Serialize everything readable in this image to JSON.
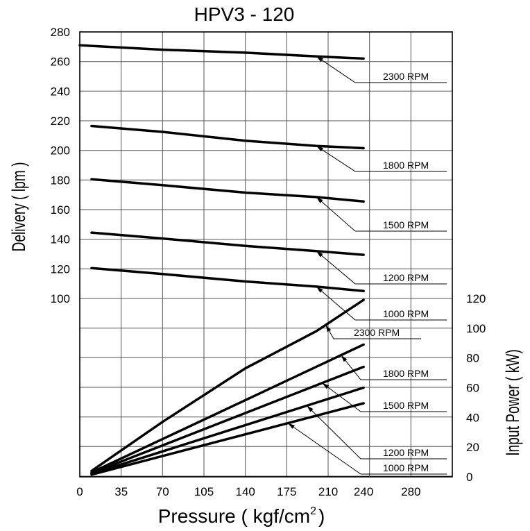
{
  "chart_data": {
    "type": "line",
    "title": "HPV3 - 120",
    "xlabel": "Pressure ( kgf/cm",
    "xlabel_sup": "2",
    "xlabel_close": ")",
    "ylabel_left": "Delivery ( lpm )",
    "ylabel_right": "Input Power ( kW)",
    "x_ticks": [
      "0",
      "35",
      "70",
      "105",
      "140",
      "175",
      "210",
      "240",
      "280"
    ],
    "x_tick_values": [
      0,
      35,
      70,
      105,
      140,
      175,
      210,
      240,
      280
    ],
    "xlim": [
      0,
      315
    ],
    "delivery_ticks": [
      "100",
      "120",
      "140",
      "160",
      "180",
      "200",
      "220",
      "240",
      "260",
      "280"
    ],
    "delivery_tick_values": [
      100,
      120,
      140,
      160,
      180,
      200,
      220,
      240,
      260,
      280
    ],
    "delivery_ylim": [
      100,
      280
    ],
    "power_ticks": [
      "0",
      "20",
      "40",
      "60",
      "80",
      "100",
      "120"
    ],
    "power_tick_values": [
      0,
      20,
      40,
      60,
      80,
      100,
      120
    ],
    "power_ylim": [
      0,
      120
    ],
    "delivery_series": [
      {
        "name": "2300 RPM",
        "x": [
          0,
          70,
          140,
          200,
          240
        ],
        "y": [
          271,
          268,
          266,
          263.5,
          262
        ]
      },
      {
        "name": "1800 RPM",
        "x": [
          10,
          70,
          140,
          200,
          240
        ],
        "y": [
          216.5,
          212.5,
          206.5,
          203,
          201.5
        ]
      },
      {
        "name": "1500 RPM",
        "x": [
          10,
          70,
          140,
          200,
          240
        ],
        "y": [
          180.5,
          176.5,
          171.5,
          168.5,
          165.5
        ]
      },
      {
        "name": "1200 RPM",
        "x": [
          10,
          70,
          140,
          200,
          240
        ],
        "y": [
          144.5,
          140.5,
          135.5,
          132,
          129.5
        ]
      },
      {
        "name": "1000 RPM",
        "x": [
          10,
          70,
          140,
          200,
          240
        ],
        "y": [
          120.5,
          116.5,
          111.5,
          108,
          105
        ]
      }
    ],
    "power_series": [
      {
        "name": "2300 RPM",
        "x": [
          10,
          70,
          140,
          200,
          240
        ],
        "y": [
          4,
          37,
          73,
          98,
          119
        ]
      },
      {
        "name": "1800 RPM",
        "x": [
          10,
          240
        ],
        "y": [
          3,
          89
        ]
      },
      {
        "name": "1500 RPM",
        "x": [
          10,
          240
        ],
        "y": [
          2.5,
          74
        ]
      },
      {
        "name": "1200 RPM",
        "x": [
          10,
          240
        ],
        "y": [
          2,
          60
        ]
      },
      {
        "name": "1000 RPM",
        "x": [
          10,
          240
        ],
        "y": [
          1.5,
          49.5
        ]
      }
    ],
    "grid": true,
    "legend": "callout labels at right"
  }
}
